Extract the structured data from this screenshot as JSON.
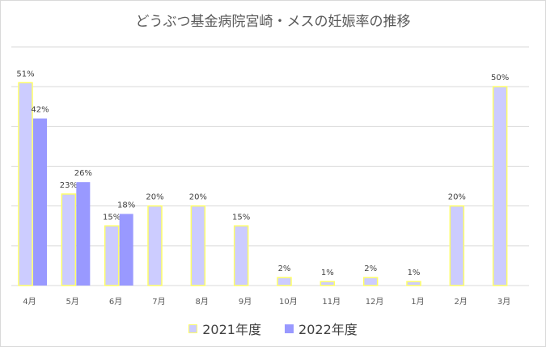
{
  "chart_data": {
    "type": "bar",
    "title": "どうぶつ基金病院宮崎・メスの妊娠率の推移",
    "categories": [
      "4月",
      "5月",
      "6月",
      "7月",
      "8月",
      "9月",
      "10月",
      "11月",
      "12月",
      "1月",
      "2月",
      "3月"
    ],
    "series": [
      {
        "name": "2021年度",
        "values": [
          51,
          23,
          15,
          20,
          20,
          15,
          2,
          1,
          2,
          1,
          20,
          50
        ],
        "labels": [
          "51%",
          "23%",
          "15%",
          "20%",
          "20%",
          "15%",
          "2%",
          "1%",
          "2%",
          "1%",
          "20%",
          "50%"
        ],
        "fill": "#ccccff",
        "stroke": "#ffff66"
      },
      {
        "name": "2022年度",
        "values": [
          42,
          26,
          18,
          null,
          null,
          null,
          null,
          null,
          null,
          null,
          null,
          null
        ],
        "labels": [
          "42%",
          "26%",
          "18%",
          "",
          "",
          "",
          "",
          "",
          "",
          "",
          "",
          ""
        ],
        "fill": "#9999ff"
      }
    ],
    "ylim": [
      0,
      60
    ],
    "grid": true,
    "legend_position": "bottom"
  }
}
